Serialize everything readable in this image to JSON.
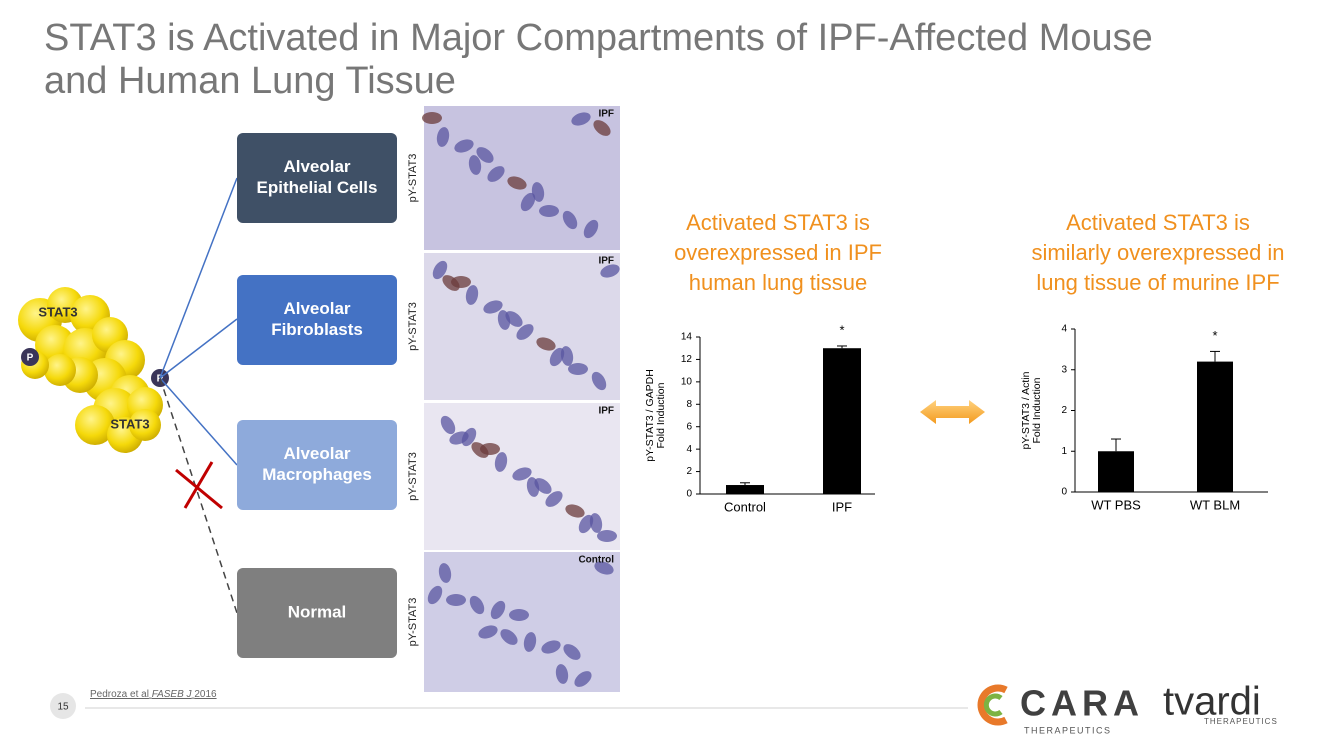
{
  "header": {
    "title": [
      "STAT3 is Activated in Major Compartments of IPF-Affected Mouse",
      "and Human Lung Tissue"
    ]
  },
  "molecule": {
    "labels": [
      "STAT3",
      "STAT3"
    ],
    "phospho": [
      "P",
      "P"
    ]
  },
  "compartments": [
    {
      "label": [
        "Alveolar",
        "Epithelial Cells"
      ],
      "stain": "pY-STAT3",
      "tag": "IPF"
    },
    {
      "label": [
        "Alveolar",
        "Fibroblasts"
      ],
      "stain": "pY-STAT3",
      "tag": "IPF"
    },
    {
      "label": [
        "Alveolar",
        "Macrophages"
      ],
      "stain": "pY-STAT3",
      "tag": "IPF"
    },
    {
      "label": [
        "Normal"
      ],
      "stain": "pY-STAT3",
      "tag": "Control"
    }
  ],
  "chart_data": [
    {
      "type": "bar",
      "title": [
        "Activated STAT3 is",
        "overexpressed in IPF",
        "human lung tissue"
      ],
      "ylabel": [
        "pY-STAT3 / GAPDH",
        "Fold Induction"
      ],
      "categories": [
        "Control",
        "IPF"
      ],
      "values": [
        0.8,
        13.0
      ],
      "errors": [
        0.2,
        0.2
      ],
      "color": "#000000",
      "annotation": "*",
      "ylim": [
        0,
        14
      ],
      "yticks": [
        0,
        2,
        4,
        6,
        8,
        10,
        12,
        14
      ]
    },
    {
      "type": "bar",
      "title": [
        "Activated STAT3 is",
        "similarly overexpressed in",
        "lung tissue of murine IPF"
      ],
      "ylabel": [
        "pY-STAT3 / Actin",
        "Fold Induction"
      ],
      "categories": [
        "WT PBS",
        "WT BLM"
      ],
      "values": [
        1.0,
        3.2
      ],
      "errors": [
        0.3,
        0.25
      ],
      "color": "#000000",
      "annotation": "*",
      "ylim": [
        0,
        4
      ],
      "yticks": [
        0,
        1,
        2,
        3,
        4
      ]
    }
  ],
  "footer": {
    "page": "15",
    "citation": [
      "Pedroza et al",
      "FASEB J",
      "2016"
    ]
  },
  "logos": {
    "cara": "CARA",
    "cara_sub": "THERAPEUTICS",
    "tvardi": "tvardi",
    "tvardi_sub": "THERAPEUTICS"
  }
}
